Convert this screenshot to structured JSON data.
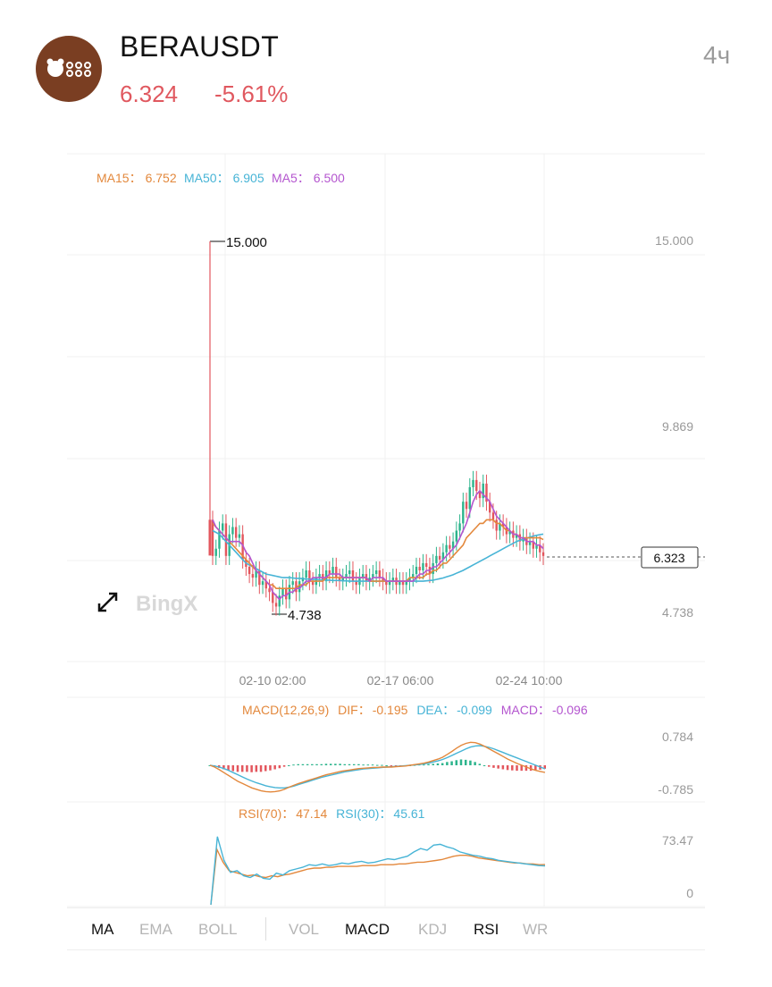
{
  "header": {
    "symbol": "BERAUSDT",
    "price": "6.324",
    "change": "-5.61%",
    "interval": "4ч",
    "logo_icon": "bear-logo-icon"
  },
  "colors": {
    "up": "#2cb48c",
    "down": "#e3565d",
    "ma15": "#e3883c",
    "ma50": "#47b4d6",
    "ma5": "#b456cf",
    "dif": "#e3883c",
    "dea": "#47b4d6"
  },
  "tabs": [
    "MA",
    "EMA",
    "BOLL",
    "VOL",
    "MACD",
    "KDJ",
    "RSI",
    "WR"
  ],
  "active_tabs": [
    "MA",
    "MACD",
    "RSI"
  ],
  "watermark": "BingX",
  "chart_data": [
    {
      "type": "candlestick",
      "legend": [
        {
          "label": "MA15：",
          "value": "6.752"
        },
        {
          "label": "MA50：",
          "value": "6.905"
        },
        {
          "label": "MA5：",
          "value": "6.500"
        }
      ],
      "y_ticks": [
        "15.000",
        "9.869",
        "4.738"
      ],
      "x_ticks": [
        "02-10 02:00",
        "02-17 06:00",
        "02-24 10:00"
      ],
      "ylim": [
        3.0,
        17.0
      ],
      "high_marker": "15.000",
      "low_marker": "4.738",
      "last_price_label": "6.323",
      "close": [
        6.3,
        6.5,
        7.0,
        7.2,
        6.3,
        6.9,
        7.1,
        6.8,
        6.9,
        6.2,
        6.0,
        5.8,
        5.7,
        5.9,
        5.5,
        5.6,
        5.4,
        5.3,
        5.0,
        4.9,
        5.2,
        5.4,
        5.1,
        5.5,
        5.6,
        5.3,
        5.6,
        5.7,
        5.9,
        5.6,
        5.5,
        5.7,
        5.8,
        5.6,
        5.9,
        5.8,
        6.0,
        5.7,
        5.6,
        5.7,
        5.8,
        5.9,
        5.6,
        5.5,
        5.7,
        5.8,
        5.6,
        5.7,
        5.8,
        5.9,
        5.7,
        5.6,
        5.5,
        5.6,
        5.7,
        5.5,
        5.6,
        5.5,
        5.6,
        5.7,
        5.8,
        6.0,
        5.9,
        6.1,
        6.0,
        5.8,
        6.1,
        6.3,
        6.2,
        6.4,
        6.6,
        6.5,
        6.7,
        7.0,
        7.2,
        7.8,
        7.6,
        8.2,
        8.4,
        8.1,
        7.9,
        8.3,
        7.8,
        7.5,
        7.3,
        7.0,
        7.2,
        7.1,
        6.9,
        7.0,
        6.8,
        6.9,
        6.7,
        6.8,
        6.6,
        6.7,
        6.5,
        6.6,
        6.4,
        6.3
      ],
      "ma5": [
        7.3,
        7.1,
        7.0,
        6.9,
        6.8,
        6.7,
        6.7,
        6.7,
        6.7,
        6.6,
        6.4,
        6.3,
        6.1,
        5.9,
        5.8,
        5.7,
        5.6,
        5.5,
        5.3,
        5.2,
        5.1,
        5.2,
        5.2,
        5.3,
        5.3,
        5.4,
        5.4,
        5.5,
        5.6,
        5.6,
        5.7,
        5.7,
        5.7,
        5.7,
        5.7,
        5.8,
        5.8,
        5.8,
        5.8,
        5.7,
        5.7,
        5.7,
        5.7,
        5.7,
        5.7,
        5.7,
        5.7,
        5.6,
        5.7,
        5.7,
        5.7,
        5.7,
        5.6,
        5.6,
        5.6,
        5.6,
        5.6,
        5.6,
        5.6,
        5.6,
        5.6,
        5.7,
        5.8,
        5.8,
        5.9,
        5.9,
        6.0,
        6.0,
        6.1,
        6.2,
        6.3,
        6.4,
        6.5,
        6.6,
        6.8,
        7.0,
        7.2,
        7.5,
        7.8,
        8.0,
        8.1,
        8.0,
        7.9,
        7.8,
        7.6,
        7.4,
        7.3,
        7.2,
        7.1,
        7.0,
        6.9,
        6.9,
        6.8,
        6.8,
        6.7,
        6.7,
        6.7,
        6.6,
        6.6,
        6.5
      ],
      "ma15": [
        7.2,
        7.1,
        7.0,
        6.9,
        6.8,
        6.7,
        6.6,
        6.5,
        6.4,
        6.3,
        6.2,
        6.1,
        6.0,
        5.9,
        5.8,
        5.7,
        5.6,
        5.5,
        5.5,
        5.4,
        5.4,
        5.4,
        5.4,
        5.4,
        5.4,
        5.4,
        5.5,
        5.5,
        5.5,
        5.6,
        5.6,
        5.6,
        5.6,
        5.6,
        5.7,
        5.7,
        5.7,
        5.7,
        5.7,
        5.7,
        5.7,
        5.7,
        5.7,
        5.7,
        5.7,
        5.7,
        5.7,
        5.6,
        5.6,
        5.6,
        5.6,
        5.6,
        5.6,
        5.6,
        5.6,
        5.6,
        5.6,
        5.6,
        5.6,
        5.7,
        5.7,
        5.7,
        5.7,
        5.7,
        5.8,
        5.8,
        5.9,
        5.9,
        6.0,
        6.1,
        6.1,
        6.2,
        6.3,
        6.4,
        6.5,
        6.6,
        6.8,
        6.9,
        7.0,
        7.1,
        7.2,
        7.2,
        7.3,
        7.3,
        7.3,
        7.2,
        7.2,
        7.1,
        7.0,
        7.0,
        6.9,
        6.9,
        6.8,
        6.8,
        6.8,
        6.8,
        6.8,
        6.8,
        6.8,
        6.75
      ],
      "ma50": [
        7.0,
        6.95,
        6.9,
        6.8,
        6.7,
        6.6,
        6.5,
        6.4,
        6.3,
        6.2,
        6.1,
        6.05,
        6.0,
        5.95,
        5.9,
        5.85,
        5.8,
        5.78,
        5.76,
        5.74,
        5.72,
        5.7,
        5.7,
        5.7,
        5.69,
        5.68,
        5.68,
        5.67,
        5.66,
        5.66,
        5.65,
        5.65,
        5.64,
        5.64,
        5.63,
        5.63,
        5.62,
        5.62,
        5.62,
        5.61,
        5.61,
        5.6,
        5.6,
        5.6,
        5.6,
        5.6,
        5.6,
        5.6,
        5.6,
        5.6,
        5.6,
        5.6,
        5.6,
        5.6,
        5.6,
        5.6,
        5.6,
        5.6,
        5.6,
        5.6,
        5.6,
        5.6,
        5.6,
        5.6,
        5.61,
        5.62,
        5.63,
        5.65,
        5.67,
        5.69,
        5.72,
        5.75,
        5.78,
        5.82,
        5.86,
        5.9,
        5.95,
        6.0,
        6.05,
        6.1,
        6.15,
        6.2,
        6.25,
        6.3,
        6.35,
        6.4,
        6.45,
        6.5,
        6.55,
        6.6,
        6.65,
        6.7,
        6.73,
        6.76,
        6.79,
        6.82,
        6.85,
        6.87,
        6.89,
        6.905
      ]
    },
    {
      "type": "bar",
      "title": "MACD(12,26,9)",
      "legend": [
        {
          "label": "DIF：",
          "value": "-0.195"
        },
        {
          "label": "DEA：",
          "value": "-0.099"
        },
        {
          "label": "MACD：",
          "value": "-0.096"
        }
      ],
      "y_ticks": [
        "0.784",
        "-0.785"
      ],
      "ylim": [
        -0.785,
        0.784
      ],
      "dif": [
        0.0,
        -0.05,
        -0.12,
        -0.2,
        -0.28,
        -0.36,
        -0.44,
        -0.5,
        -0.56,
        -0.62,
        -0.66,
        -0.7,
        -0.72,
        -0.73,
        -0.72,
        -0.7,
        -0.66,
        -0.6,
        -0.55,
        -0.5,
        -0.46,
        -0.42,
        -0.38,
        -0.34,
        -0.3,
        -0.26,
        -0.23,
        -0.2,
        -0.17,
        -0.15,
        -0.13,
        -0.11,
        -0.09,
        -0.08,
        -0.07,
        -0.06,
        -0.06,
        -0.05,
        -0.05,
        -0.05,
        -0.04,
        -0.03,
        -0.02,
        0.0,
        0.02,
        0.04,
        0.06,
        0.09,
        0.13,
        0.17,
        0.22,
        0.3,
        0.38,
        0.47,
        0.55,
        0.6,
        0.63,
        0.62,
        0.58,
        0.52,
        0.45,
        0.38,
        0.31,
        0.24,
        0.17,
        0.11,
        0.05,
        0.0,
        -0.05,
        -0.1,
        -0.14,
        -0.17,
        -0.195
      ],
      "dea": [
        0.0,
        -0.02,
        -0.05,
        -0.09,
        -0.14,
        -0.2,
        -0.26,
        -0.32,
        -0.38,
        -0.43,
        -0.48,
        -0.52,
        -0.56,
        -0.59,
        -0.61,
        -0.62,
        -0.62,
        -0.6,
        -0.57,
        -0.53,
        -0.49,
        -0.45,
        -0.41,
        -0.37,
        -0.33,
        -0.3,
        -0.27,
        -0.24,
        -0.21,
        -0.18,
        -0.16,
        -0.14,
        -0.12,
        -0.1,
        -0.09,
        -0.08,
        -0.07,
        -0.06,
        -0.05,
        -0.04,
        -0.03,
        -0.02,
        -0.01,
        0.0,
        0.01,
        0.02,
        0.04,
        0.06,
        0.09,
        0.12,
        0.16,
        0.21,
        0.27,
        0.33,
        0.39,
        0.45,
        0.5,
        0.53,
        0.54,
        0.52,
        0.49,
        0.45,
        0.4,
        0.35,
        0.3,
        0.25,
        0.2,
        0.15,
        0.1,
        0.05,
        0.0,
        -0.05,
        -0.099
      ]
    },
    {
      "type": "line",
      "legend": [
        {
          "label": "RSI(70)：",
          "value": "47.14"
        },
        {
          "label": "RSI(30)：",
          "value": "45.61"
        }
      ],
      "y_ticks": [
        "73.47",
        "0"
      ],
      "ylim": [
        0,
        73.47
      ],
      "rsi70": [
        0,
        65,
        50,
        40,
        38,
        36,
        34,
        35,
        33,
        32,
        34,
        33,
        35,
        36,
        38,
        40,
        42,
        43,
        43,
        44,
        44,
        45,
        45,
        45,
        45,
        46,
        46,
        46,
        47,
        47,
        47,
        48,
        48,
        49,
        50,
        50,
        51,
        52,
        53,
        55,
        57,
        58,
        58,
        57,
        55,
        54,
        53,
        52,
        51,
        50,
        49,
        49,
        48,
        48,
        47,
        47.14
      ],
      "rsi30": [
        0,
        80,
        52,
        38,
        40,
        34,
        32,
        36,
        31,
        30,
        37,
        35,
        40,
        42,
        44,
        47,
        46,
        48,
        46,
        47,
        49,
        48,
        50,
        51,
        49,
        50,
        52,
        54,
        53,
        55,
        57,
        62,
        66,
        64,
        70,
        71,
        68,
        66,
        62,
        60,
        58,
        57,
        55,
        54,
        52,
        51,
        50,
        49,
        48,
        47,
        46,
        45.61
      ]
    }
  ]
}
